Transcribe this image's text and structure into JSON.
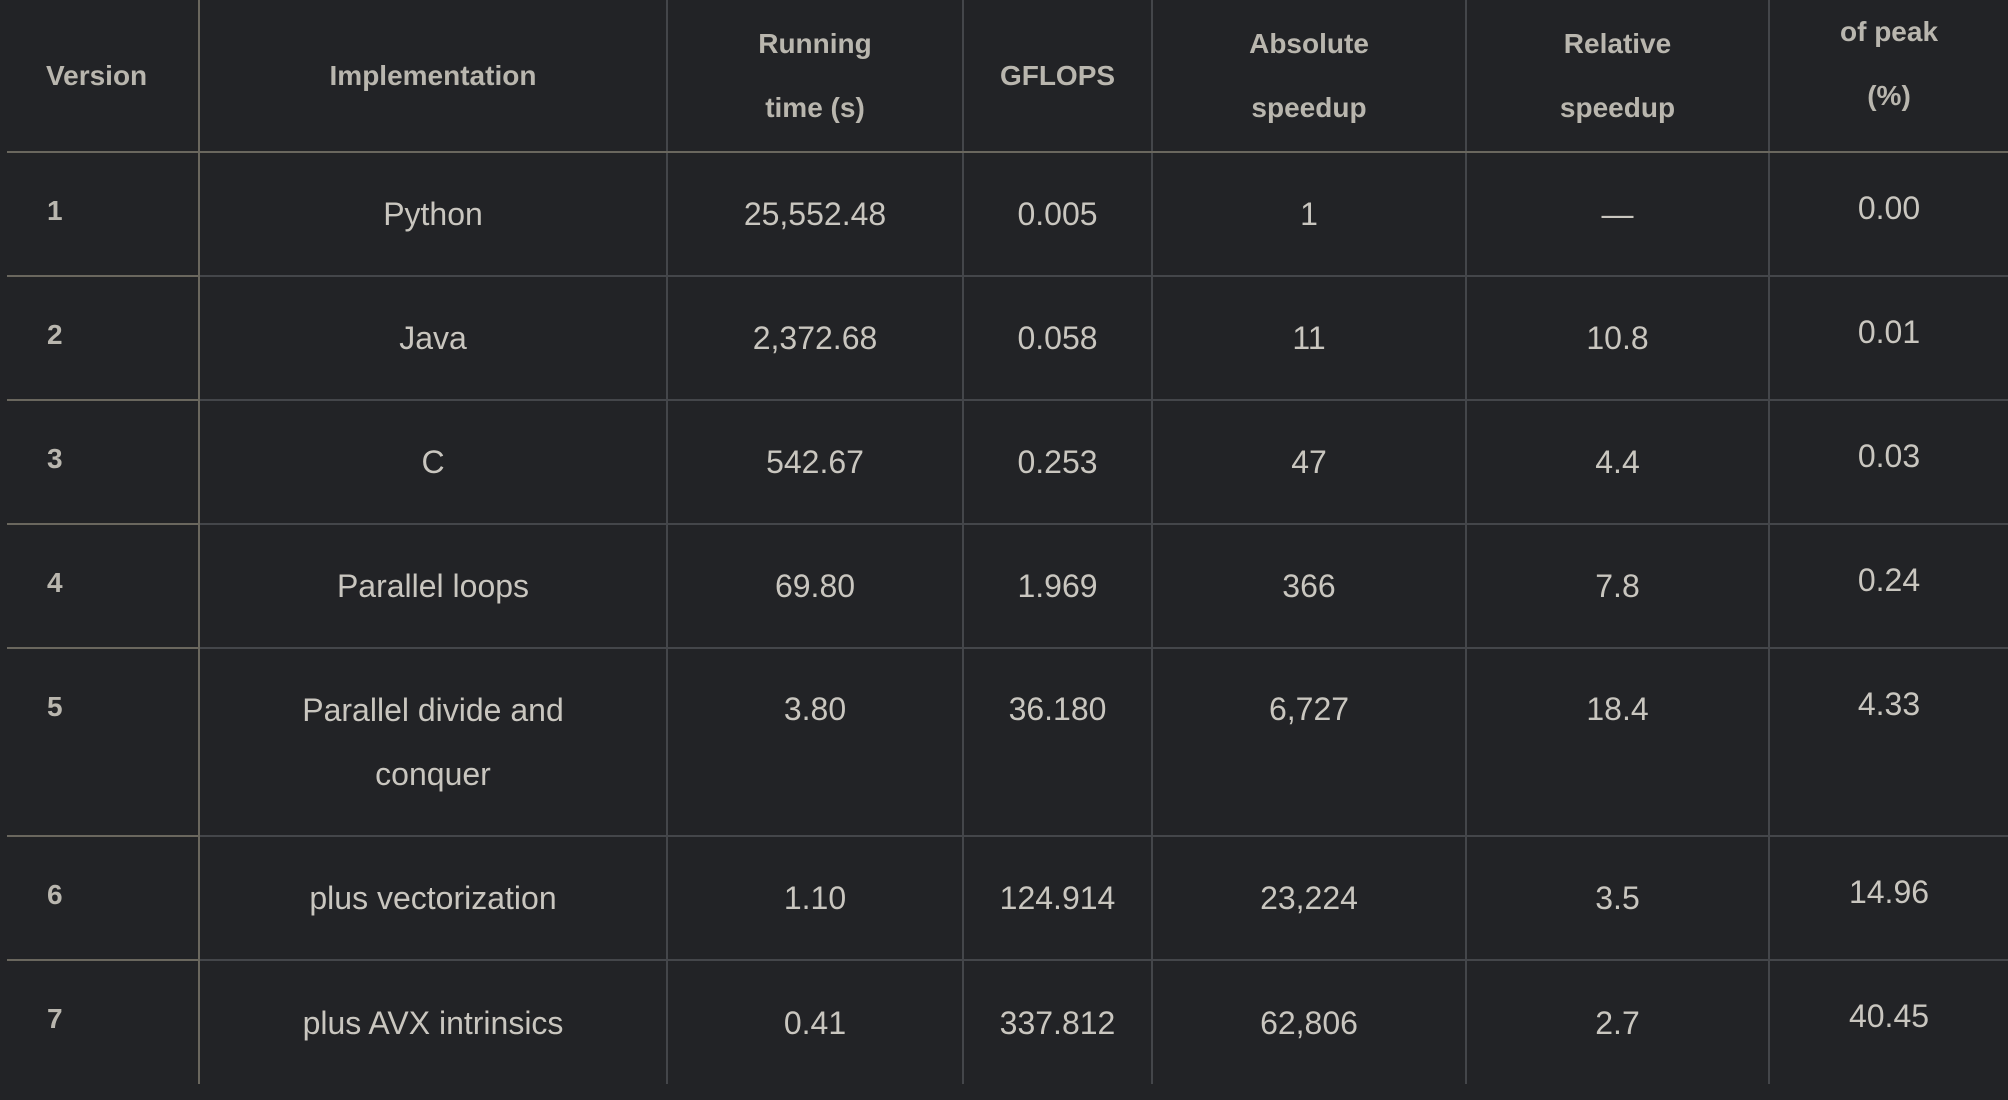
{
  "table": {
    "headers": {
      "version": "Version",
      "implementation": "Implementation",
      "running_time": "Running time (s)",
      "gflops": "GFLOPS",
      "absolute_speedup": "Absolute speedup",
      "relative_speedup": "Relative speedup",
      "of_peak": "of peak (%)"
    },
    "rows": [
      {
        "version": "1",
        "implementation": "Python",
        "running_time": "25,552.48",
        "gflops": "0.005",
        "absolute_speedup": "1",
        "relative_speedup": "—",
        "of_peak": "0.00"
      },
      {
        "version": "2",
        "implementation": "Java",
        "running_time": "2,372.68",
        "gflops": "0.058",
        "absolute_speedup": "11",
        "relative_speedup": "10.8",
        "of_peak": "0.01"
      },
      {
        "version": "3",
        "implementation": "C",
        "running_time": "542.67",
        "gflops": "0.253",
        "absolute_speedup": "47",
        "relative_speedup": "4.4",
        "of_peak": "0.03"
      },
      {
        "version": "4",
        "implementation": "Parallel loops",
        "running_time": "69.80",
        "gflops": "1.969",
        "absolute_speedup": "366",
        "relative_speedup": "7.8",
        "of_peak": "0.24"
      },
      {
        "version": "5",
        "implementation": "Parallel divide and conquer",
        "running_time": "3.80",
        "gflops": "36.180",
        "absolute_speedup": "6,727",
        "relative_speedup": "18.4",
        "of_peak": "4.33"
      },
      {
        "version": "6",
        "implementation": "plus vectorization",
        "running_time": "1.10",
        "gflops": "124.914",
        "absolute_speedup": "23,224",
        "relative_speedup": "3.5",
        "of_peak": "14.96"
      },
      {
        "version": "7",
        "implementation": "plus AVX intrinsics",
        "running_time": "0.41",
        "gflops": "337.812",
        "absolute_speedup": "62,806",
        "relative_speedup": "2.7",
        "of_peak": "40.45"
      }
    ]
  }
}
